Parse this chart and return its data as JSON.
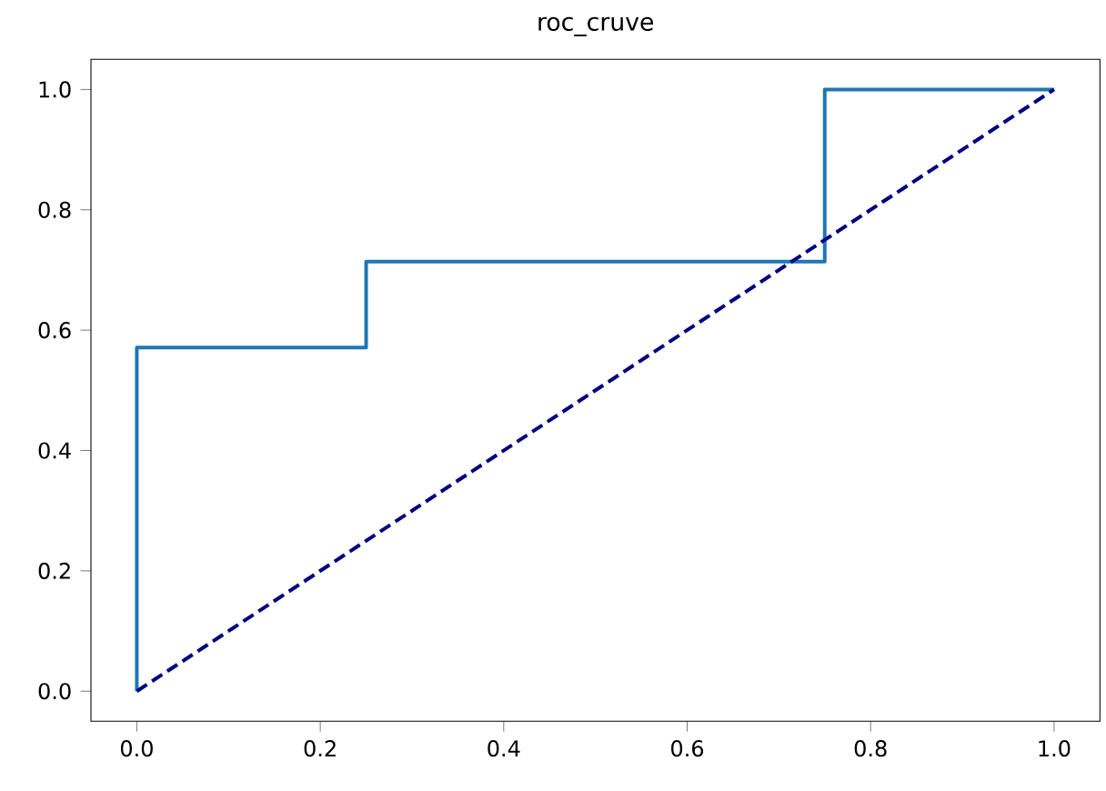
{
  "chart_data": {
    "type": "line",
    "title": "roc_cruve",
    "series": [
      {
        "color": "#1f77b4",
        "line_style": "solid",
        "x": [
          0,
          0,
          0.25,
          0.25,
          0.75,
          0.75,
          1
        ],
        "values": [
          0,
          0.571,
          0.571,
          0.714,
          0.714,
          1,
          1
        ]
      },
      {
        "color": "#000080",
        "line_style": "dashed",
        "x": [
          0,
          1
        ],
        "values": [
          0,
          1
        ]
      }
    ],
    "xlim": [
      -0.05,
      1.05
    ],
    "ylim": [
      -0.05,
      1.05
    ],
    "xticks": [
      {
        "value": 0,
        "label": "0.0"
      },
      {
        "value": 0.2,
        "label": "0.2"
      },
      {
        "value": 0.4,
        "label": "0.4"
      },
      {
        "value": 0.6,
        "label": "0.6"
      },
      {
        "value": 0.8,
        "label": "0.8"
      },
      {
        "value": 1,
        "label": "1.0"
      }
    ],
    "yticks": [
      {
        "value": 0,
        "label": "0.0"
      },
      {
        "value": 0.2,
        "label": "0.2"
      },
      {
        "value": 0.4,
        "label": "0.4"
      },
      {
        "value": 0.6,
        "label": "0.6"
      },
      {
        "value": 0.8,
        "label": "0.8"
      },
      {
        "value": 1,
        "label": "1.0"
      }
    ],
    "marker": "none"
  }
}
